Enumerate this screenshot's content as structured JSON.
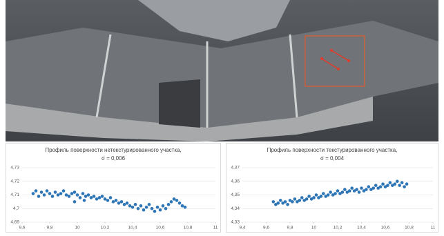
{
  "chart_data": [
    {
      "type": "scatter",
      "title": "Профиль поверхности нетекстурированного участка,",
      "subtitle": "σ = 0,006",
      "color": "#2e75b6",
      "x": [
        9.68,
        9.7,
        9.72,
        9.74,
        9.76,
        9.78,
        9.8,
        9.82,
        9.84,
        9.86,
        9.88,
        9.9,
        9.92,
        9.94,
        9.96,
        9.98,
        10.0,
        10.02,
        10.04,
        10.06,
        10.08,
        10.1,
        10.12,
        10.14,
        10.16,
        10.18,
        10.2,
        10.22,
        10.24,
        10.26,
        10.28,
        10.3,
        10.32,
        10.34,
        10.36,
        10.38,
        10.4,
        10.42,
        10.44,
        10.46,
        10.48,
        10.5,
        10.52,
        10.54,
        10.56,
        10.58,
        10.6,
        10.62,
        10.64,
        10.66,
        10.68,
        10.7,
        10.72,
        10.74,
        10.76,
        10.78,
        9.98,
        10.05
      ],
      "y": [
        4.711,
        4.713,
        4.709,
        4.712,
        4.71,
        4.713,
        4.711,
        4.709,
        4.712,
        4.71,
        4.711,
        4.713,
        4.71,
        4.709,
        4.711,
        4.712,
        4.71,
        4.708,
        4.711,
        4.709,
        4.71,
        4.708,
        4.709,
        4.707,
        4.708,
        4.709,
        4.707,
        4.706,
        4.708,
        4.705,
        4.706,
        4.704,
        4.705,
        4.703,
        4.704,
        4.702,
        4.701,
        4.703,
        4.7,
        4.702,
        4.699,
        4.701,
        4.703,
        4.7,
        4.698,
        4.701,
        4.699,
        4.702,
        4.7,
        4.703,
        4.705,
        4.707,
        4.706,
        4.704,
        4.702,
        4.701,
        4.705,
        4.706
      ],
      "xlim": [
        9.6,
        11
      ],
      "xticks": [
        {
          "value": 9.6,
          "label": "9,6"
        },
        {
          "value": 9.8,
          "label": "9,8"
        },
        10,
        {
          "value": 10.2,
          "label": "10,2"
        },
        {
          "value": 10.4,
          "label": "10,4"
        },
        {
          "value": 10.6,
          "label": "10,6"
        },
        {
          "value": 10.8,
          "label": "10,8"
        },
        11
      ],
      "ylim": [
        4.69,
        4.73
      ],
      "yticks": [
        {
          "value": 4.69,
          "label": "4,69"
        },
        {
          "value": 4.7,
          "label": "4,7"
        },
        {
          "value": 4.71,
          "label": "4,71"
        },
        {
          "value": 4.72,
          "label": "4,72"
        },
        {
          "value": 4.73,
          "label": "4,73"
        }
      ]
    },
    {
      "type": "scatter",
      "title": "Профиль поверхности текстурированного участка,",
      "subtitle": "σ = 0,004",
      "color": "#2e75b6",
      "x": [
        9.66,
        9.68,
        9.7,
        9.72,
        9.74,
        9.76,
        9.78,
        9.8,
        9.82,
        9.84,
        9.86,
        9.88,
        9.9,
        9.92,
        9.94,
        9.96,
        9.98,
        10.0,
        10.02,
        10.04,
        10.06,
        10.08,
        10.1,
        10.12,
        10.14,
        10.16,
        10.18,
        10.2,
        10.22,
        10.24,
        10.26,
        10.28,
        10.3,
        10.32,
        10.34,
        10.36,
        10.38,
        10.4,
        10.42,
        10.44,
        10.46,
        10.48,
        10.5,
        10.52,
        10.54,
        10.56,
        10.58,
        10.6,
        10.62,
        10.64,
        10.66,
        10.68,
        10.7,
        10.72,
        10.74,
        10.76,
        10.78
      ],
      "y": [
        4.345,
        4.343,
        4.344,
        4.346,
        4.344,
        4.345,
        4.343,
        4.346,
        4.345,
        4.347,
        4.345,
        4.346,
        4.348,
        4.346,
        4.347,
        4.349,
        4.347,
        4.348,
        4.35,
        4.348,
        4.349,
        4.351,
        4.349,
        4.35,
        4.352,
        4.35,
        4.351,
        4.353,
        4.351,
        4.352,
        4.354,
        4.352,
        4.353,
        4.355,
        4.353,
        4.354,
        4.352,
        4.355,
        4.353,
        4.354,
        4.356,
        4.354,
        4.355,
        4.357,
        4.355,
        4.356,
        4.358,
        4.356,
        4.357,
        4.359,
        4.357,
        4.358,
        4.36,
        4.357,
        4.359,
        4.356,
        4.358
      ],
      "xlim": [
        9.4,
        11
      ],
      "xticks": [
        {
          "value": 9.4,
          "label": "9,4"
        },
        {
          "value": 9.6,
          "label": "9,6"
        },
        {
          "value": 9.8,
          "label": "9,8"
        },
        10,
        {
          "value": 10.2,
          "label": "10,2"
        },
        {
          "value": 10.4,
          "label": "10,4"
        },
        {
          "value": 10.6,
          "label": "10,6"
        },
        {
          "value": 10.8,
          "label": "10,8"
        },
        11
      ],
      "ylim": [
        4.33,
        4.37
      ],
      "yticks": [
        {
          "value": 4.33,
          "label": "4,33"
        },
        {
          "value": 4.34,
          "label": "4,34"
        },
        {
          "value": 4.35,
          "label": "4,35"
        },
        {
          "value": 4.36,
          "label": "4,36"
        },
        {
          "value": 4.37,
          "label": "4,37"
        }
      ]
    }
  ]
}
